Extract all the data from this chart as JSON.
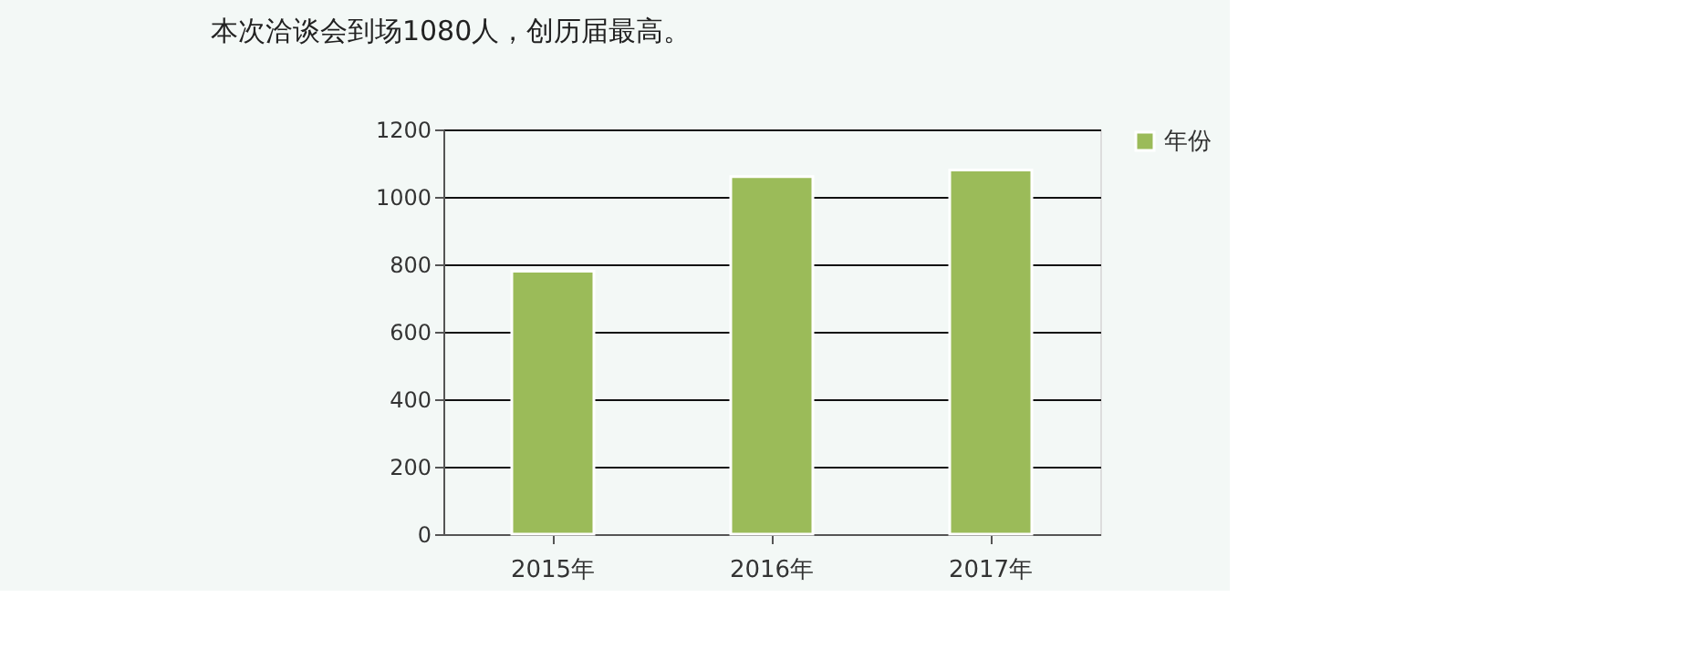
{
  "chart_data": {
    "type": "bar",
    "title": "本次洽谈会到场1080人，创历届最高。",
    "categories": [
      "2015年",
      "2016年",
      "2017年"
    ],
    "series": [
      {
        "name": "年份",
        "color": "#9bbb59",
        "values": [
          780,
          1060,
          1080
        ]
      }
    ],
    "ylim": [
      0,
      1200
    ],
    "yticks": [
      0,
      200,
      400,
      600,
      800,
      1000,
      1200
    ],
    "grid": "y",
    "legend": "right"
  }
}
